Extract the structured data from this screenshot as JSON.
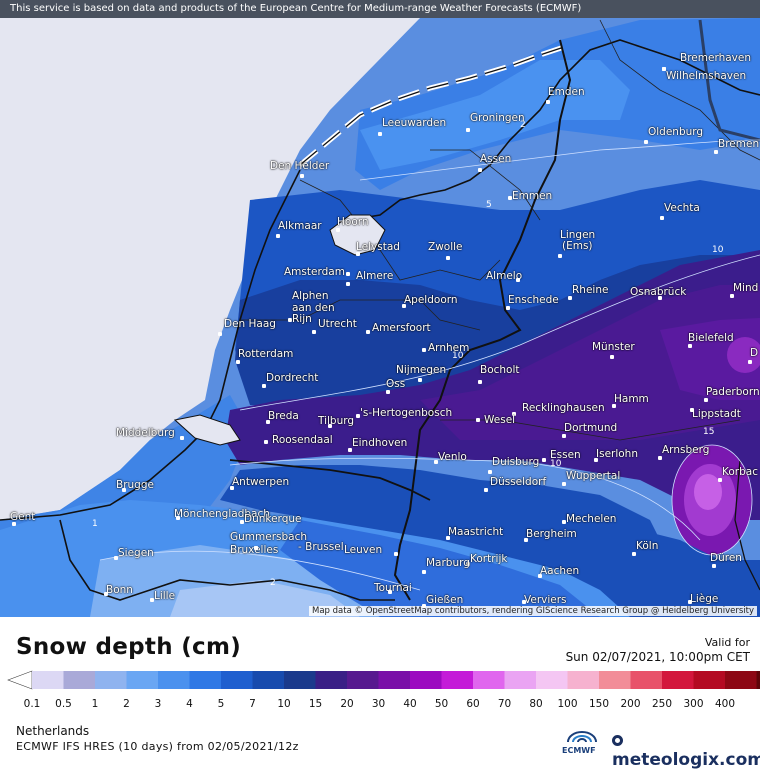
{
  "header_note": "This service is based on data and products of the European Centre for Medium-range Weather Forecasts (ECMWF)",
  "attribution": "Map data © OpenStreetMap contributors, rendering GIScience Research Group @ Heidelberg University",
  "legend": {
    "title": "Snow depth (cm)",
    "valid_label": "Valid for",
    "valid_time": "Sun 02/07/2021, 10:00pm CET",
    "ticks": [
      "0.1",
      "0.5",
      "1",
      "2",
      "3",
      "4",
      "5",
      "7",
      "10",
      "15",
      "20",
      "30",
      "40",
      "50",
      "60",
      "70",
      "80",
      "100",
      "150",
      "200",
      "250",
      "300",
      "400"
    ],
    "colors": [
      "#dcd8f4",
      "#a9a9d8",
      "#8fb3ef",
      "#6aa6f3",
      "#4b91ee",
      "#2f78e5",
      "#1f5fcf",
      "#184bae",
      "#1b3a8c",
      "#3a1f86",
      "#57198f",
      "#7a0fa8",
      "#9c0ac0",
      "#c41bd8",
      "#e066ee",
      "#eaa4f3",
      "#f4c6f3",
      "#f6b2cf",
      "#f28d98",
      "#e8526a",
      "#d3163c",
      "#b40a22",
      "#8d0714",
      "#5e0409"
    ]
  },
  "footer": {
    "region": "Netherlands",
    "model": "ECMWF IFS HRES (10 days) from 02/05/2021/12z",
    "ecmwf_label": "ECMWF",
    "brand": "meteologix.com"
  },
  "cities": [
    {
      "name": "Bremerhaven"
    },
    {
      "name": "Wilhelmshaven"
    },
    {
      "name": "Emden"
    },
    {
      "name": "Leeuwarden"
    },
    {
      "name": "Groningen"
    },
    {
      "name": "Oldenburg"
    },
    {
      "name": "Bremen"
    },
    {
      "name": "Den Helder"
    },
    {
      "name": "Assen"
    },
    {
      "name": "Emmen"
    },
    {
      "name": "Vechta"
    },
    {
      "name": "Alkmaar"
    },
    {
      "name": "Hoorn"
    },
    {
      "name": "Lelystad"
    },
    {
      "name": "Zwolle"
    },
    {
      "name": "Lingen"
    },
    {
      "name": "(Ems)"
    },
    {
      "name": "Amsterdam"
    },
    {
      "name": "Almere"
    },
    {
      "name": "Almelo"
    },
    {
      "name": "Alphen"
    },
    {
      "name": "aan den"
    },
    {
      "name": "Rijn"
    },
    {
      "name": "Apeldoorn"
    },
    {
      "name": "Enschede"
    },
    {
      "name": "Rheine"
    },
    {
      "name": "Osnabrück"
    },
    {
      "name": "Mind"
    },
    {
      "name": "Den Haag"
    },
    {
      "name": "Utrecht"
    },
    {
      "name": "Amersfoort"
    },
    {
      "name": "Bielefeld"
    },
    {
      "name": "Rotterdam"
    },
    {
      "name": "Arnhem"
    },
    {
      "name": "Münster"
    },
    {
      "name": "D"
    },
    {
      "name": "Dordrecht"
    },
    {
      "name": "Nijmegen"
    },
    {
      "name": "Bocholt"
    },
    {
      "name": "Oss"
    },
    {
      "name": "Paderborn"
    },
    {
      "name": "Hamm"
    },
    {
      "name": "Breda"
    },
    {
      "name": "Tilburg"
    },
    {
      "name": "'s-Hertogenbosch"
    },
    {
      "name": "Recklinghausen"
    },
    {
      "name": "Lippstadt"
    },
    {
      "name": "Wesel"
    },
    {
      "name": "Middelburg"
    },
    {
      "name": "Dortmund"
    },
    {
      "name": "Roosendaal"
    },
    {
      "name": "Eindhoven"
    },
    {
      "name": "Iserlohn"
    },
    {
      "name": "Essen"
    },
    {
      "name": "Arnsberg"
    },
    {
      "name": "Venlo"
    },
    {
      "name": "Duisburg"
    },
    {
      "name": "Korbac"
    },
    {
      "name": "Wuppertal"
    },
    {
      "name": "Antwerpen"
    },
    {
      "name": "Düsseldorf"
    },
    {
      "name": "Brugge"
    },
    {
      "name": "Mönchengladbach"
    },
    {
      "name": "Gent"
    },
    {
      "name": "Dunkerque"
    },
    {
      "name": "Mechelen"
    },
    {
      "name": "Gummersbach"
    },
    {
      "name": "Bruxelles"
    },
    {
      "name": "- Brussel"
    },
    {
      "name": "Leuven"
    },
    {
      "name": "Maastricht"
    },
    {
      "name": "Bergheim"
    },
    {
      "name": "Köln"
    },
    {
      "name": "Siegen"
    },
    {
      "name": "Kortrijk"
    },
    {
      "name": "Düren"
    },
    {
      "name": "Marburg"
    },
    {
      "name": "Aachen"
    },
    {
      "name": "Bonn"
    },
    {
      "name": "Lille"
    },
    {
      "name": "Tournai"
    },
    {
      "name": "Liège"
    },
    {
      "name": "Gießen"
    },
    {
      "name": "Verviers"
    },
    {
      "name": "Euskirchen"
    }
  ],
  "contour_labels": [
    "2",
    "5",
    "10",
    "15",
    "10",
    "1",
    "2",
    "10"
  ]
}
